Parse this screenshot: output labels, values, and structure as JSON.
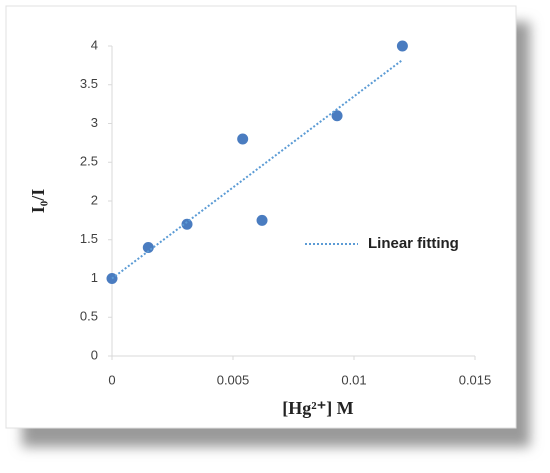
{
  "chart_data": {
    "type": "scatter",
    "x_label": "[Hg²⁺]  M",
    "y_label": "I₀/I",
    "series": [
      {
        "type": "scatter",
        "color": "#4a7cc0",
        "x": [
          0,
          0.0015,
          0.0031,
          0.0054,
          0.0062,
          0.0093,
          0.012
        ],
        "values": [
          1,
          1.4,
          1.7,
          2.8,
          1.75,
          3.1,
          4
        ]
      },
      {
        "type": "line",
        "name": "Linear fitting",
        "color": "#5b9bd5",
        "x": [
          0,
          0.012
        ],
        "values": [
          1,
          3.82
        ]
      }
    ],
    "xlim": [
      0,
      0.015
    ],
    "xticks": [
      0,
      0.005,
      0.01,
      0.015
    ],
    "ylim": [
      0,
      4
    ],
    "yticks": [
      0,
      0.5,
      1,
      1.5,
      2,
      2.5,
      3,
      3.5,
      4
    ],
    "grid": false
  }
}
